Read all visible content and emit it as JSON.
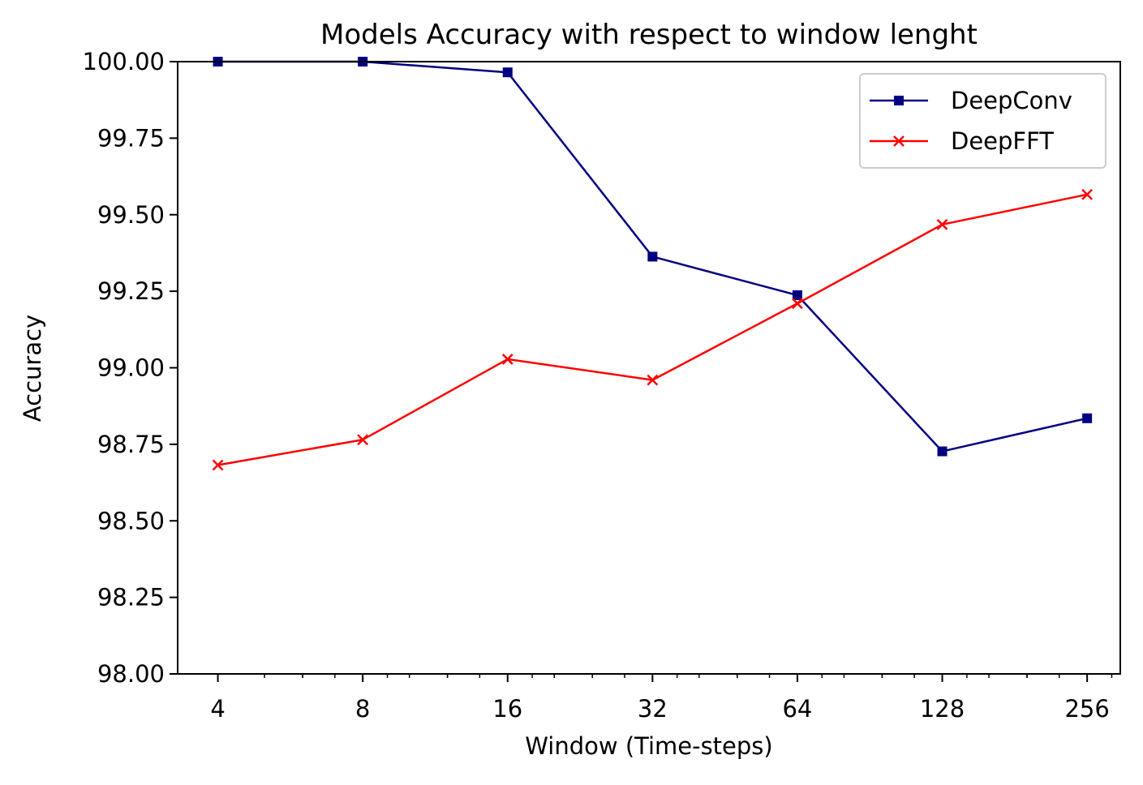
{
  "chart_data": {
    "type": "line",
    "title": "Models Accuracy with respect to window lenght",
    "xlabel": "Window (Time-steps)",
    "ylabel": "Accuracy",
    "x_scale": "log2",
    "x": [
      4,
      8,
      16,
      32,
      64,
      128,
      256
    ],
    "x_tick_labels": [
      "4",
      "8",
      "16",
      "32",
      "64",
      "128",
      "256"
    ],
    "xlim": [
      3.3,
      300
    ],
    "ylim": [
      98.0,
      100.0
    ],
    "y_ticks": [
      98.0,
      98.25,
      98.5,
      98.75,
      99.0,
      99.25,
      99.5,
      99.75,
      100.0
    ],
    "y_tick_labels": [
      "98.00",
      "98.25",
      "98.50",
      "98.75",
      "99.00",
      "99.25",
      "99.50",
      "99.75",
      "100.00"
    ],
    "grid": false,
    "legend_position": "top-right",
    "series": [
      {
        "name": "DeepConv",
        "color": "#000080",
        "marker": "square",
        "values": [
          100.0,
          100.0,
          99.965,
          99.363,
          99.237,
          98.727,
          98.835
        ]
      },
      {
        "name": "DeepFFT",
        "color": "#ff0000",
        "marker": "x",
        "values": [
          98.682,
          98.765,
          99.028,
          98.96,
          99.21,
          99.468,
          99.566
        ]
      }
    ]
  }
}
